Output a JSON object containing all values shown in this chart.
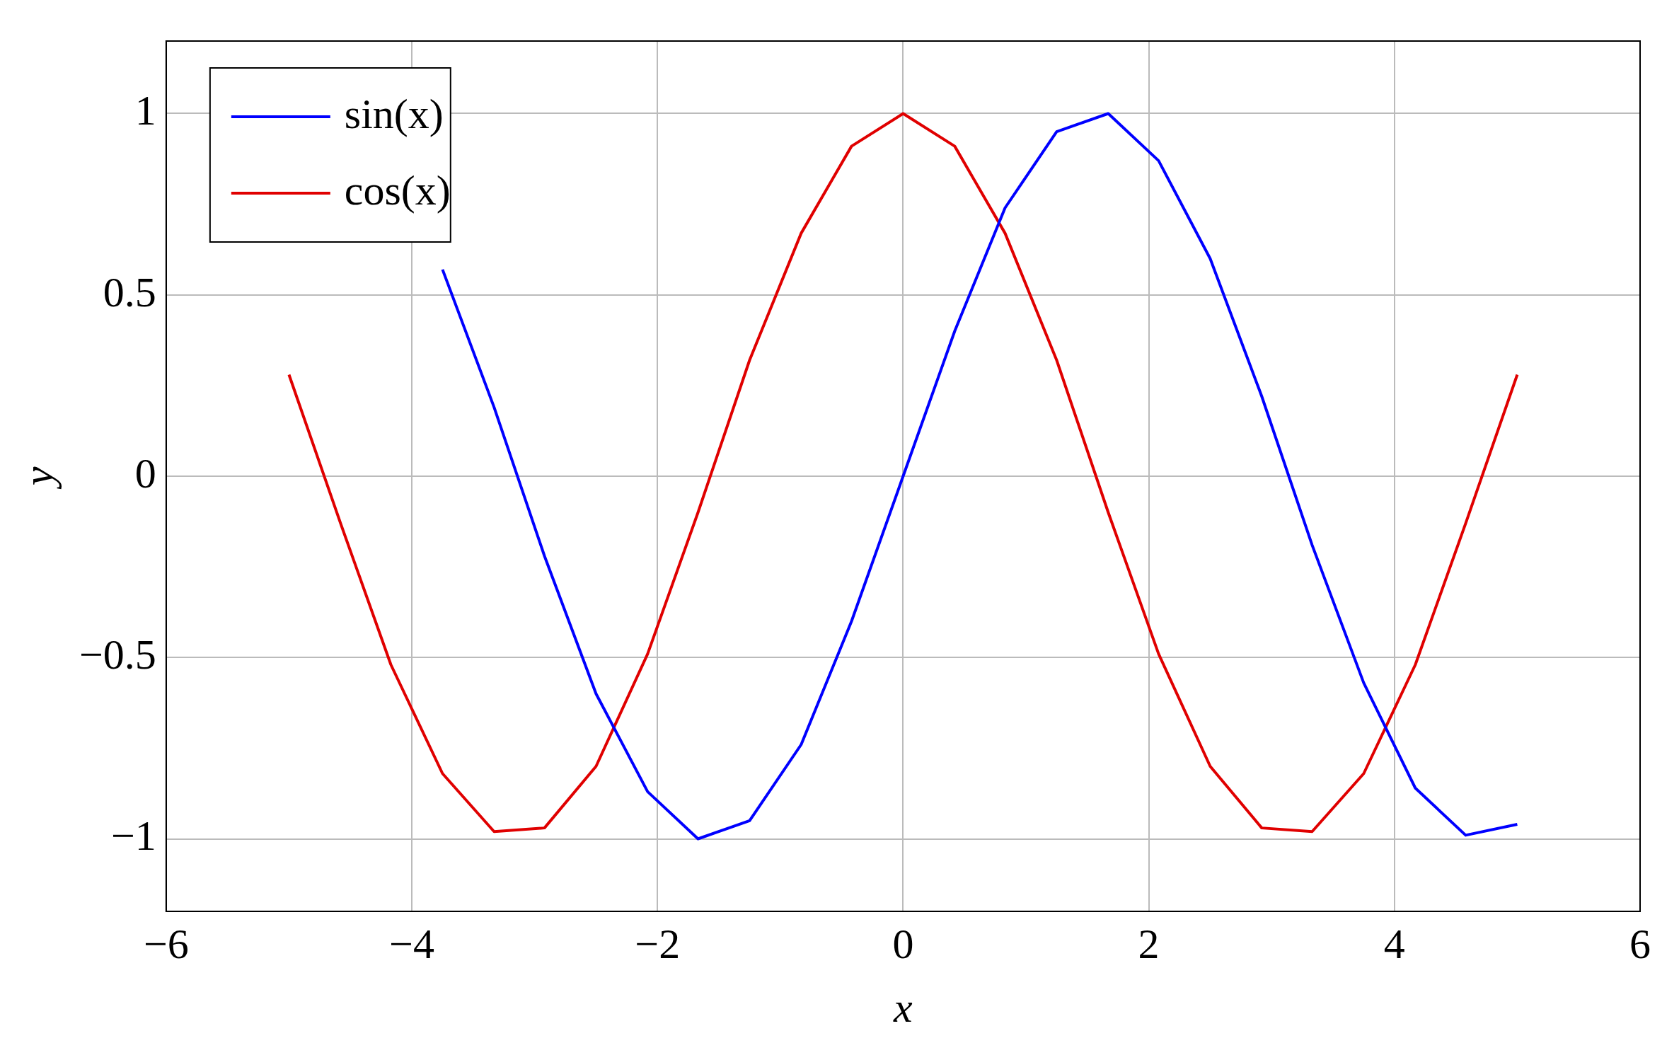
{
  "chart_data": {
    "type": "line",
    "xlabel": "x",
    "ylabel": "y",
    "x": [
      -5,
      -4.58,
      -4.17,
      -3.75,
      -3.33,
      -2.92,
      -2.5,
      -2.08,
      -1.67,
      -1.25,
      -0.83,
      -0.42,
      0,
      0.42,
      0.83,
      1.25,
      1.67,
      2.08,
      2.5,
      2.92,
      3.33,
      3.75,
      4.17,
      4.58,
      5
    ],
    "series": [
      {
        "name": "sin(x)",
        "color": "#0000ff",
        "values": [
          null,
          null,
          null,
          0.57,
          0.19,
          -0.22,
          -0.6,
          -0.87,
          -1,
          -0.95,
          -0.74,
          -0.4,
          0,
          0.4,
          0.74,
          0.95,
          1,
          0.87,
          0.6,
          0.22,
          -0.19,
          -0.57,
          -0.86,
          -0.99,
          -0.96
        ]
      },
      {
        "name": "cos(x)",
        "color": "#e00000",
        "values": [
          0.28,
          -0.13,
          -0.52,
          -0.82,
          -0.98,
          -0.97,
          -0.8,
          -0.49,
          -0.1,
          0.32,
          0.67,
          0.91,
          1,
          0.91,
          0.67,
          0.32,
          -0.1,
          -0.49,
          -0.8,
          -0.97,
          -0.98,
          -0.82,
          -0.52,
          -0.13,
          0.28
        ]
      }
    ],
    "xlim": [
      -6,
      6
    ],
    "xticks": [
      {
        "value": -6,
        "label": "−6"
      },
      {
        "value": -4,
        "label": "−4"
      },
      {
        "value": -2,
        "label": "−2"
      },
      0,
      2,
      4,
      6
    ],
    "ylim": [
      -1.2,
      1.2
    ],
    "yticks": [
      {
        "value": -1,
        "label": "−1"
      },
      {
        "value": -0.5,
        "label": "−0.5"
      },
      0,
      0.5,
      1
    ],
    "grid": true,
    "legend": "top left",
    "marker": "none",
    "line_style": "solid"
  }
}
